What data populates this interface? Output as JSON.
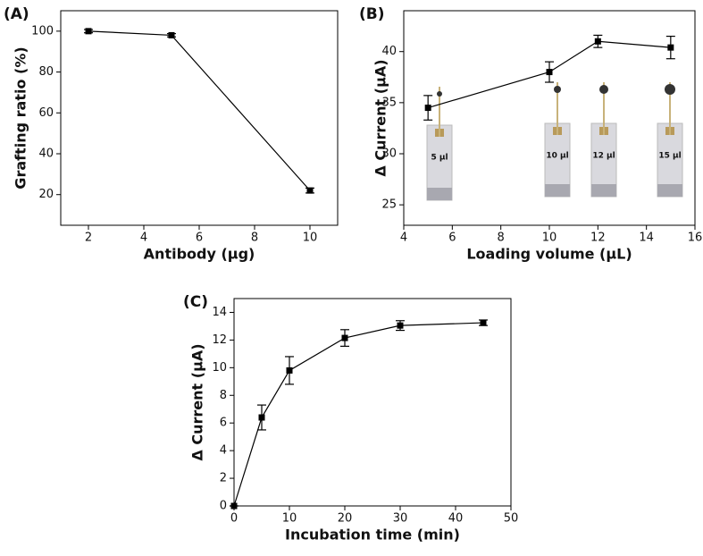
{
  "chart_data": [
    {
      "type": "line",
      "label": "(A)",
      "xlabel": "Antibody (µg)",
      "ylabel": "Grafting ratio (%)",
      "x": [
        2,
        5,
        10
      ],
      "values": [
        100,
        98,
        22
      ],
      "errors": [
        0.8,
        0.8,
        1.2
      ],
      "color": "#000000",
      "xlim": [
        1,
        11
      ],
      "xticks": [
        2,
        4,
        6,
        8,
        10
      ],
      "ylim": [
        5,
        110
      ],
      "yticks": [
        20,
        40,
        60,
        80,
        100
      ],
      "grid": false
    },
    {
      "type": "line",
      "label": "(B)",
      "xlabel": "Loading volume (µL)",
      "ylabel": "Δ Current (µA)",
      "x": [
        5,
        10,
        12,
        15
      ],
      "values": [
        34.5,
        38,
        41,
        40.4
      ],
      "errors": [
        1.2,
        1,
        0.6,
        1.1
      ],
      "color": "#000000",
      "xlim": [
        4,
        16
      ],
      "xticks": [
        4,
        6,
        8,
        10,
        12,
        14,
        16
      ],
      "ylim": [
        23,
        44
      ],
      "yticks": [
        25,
        30,
        35,
        40
      ],
      "grid": false,
      "insets": [
        "5 µl",
        "10 µl",
        "12 µl",
        "15 µl"
      ]
    },
    {
      "type": "line",
      "label": "(C)",
      "xlabel": "Incubation time (min)",
      "ylabel": "Δ Current (µA)",
      "x": [
        0,
        5,
        10,
        20,
        30,
        45
      ],
      "values": [
        0,
        6.4,
        9.8,
        12.15,
        13.05,
        13.25
      ],
      "errors": [
        0,
        0.9,
        1,
        0.6,
        0.35,
        0.2
      ],
      "color": "#000000",
      "xlim": [
        0,
        50
      ],
      "xticks": [
        0,
        10,
        20,
        30,
        40,
        50
      ],
      "ylim": [
        0,
        15
      ],
      "yticks": [
        0,
        2,
        4,
        6,
        8,
        10,
        12,
        14
      ],
      "grid": false
    }
  ]
}
